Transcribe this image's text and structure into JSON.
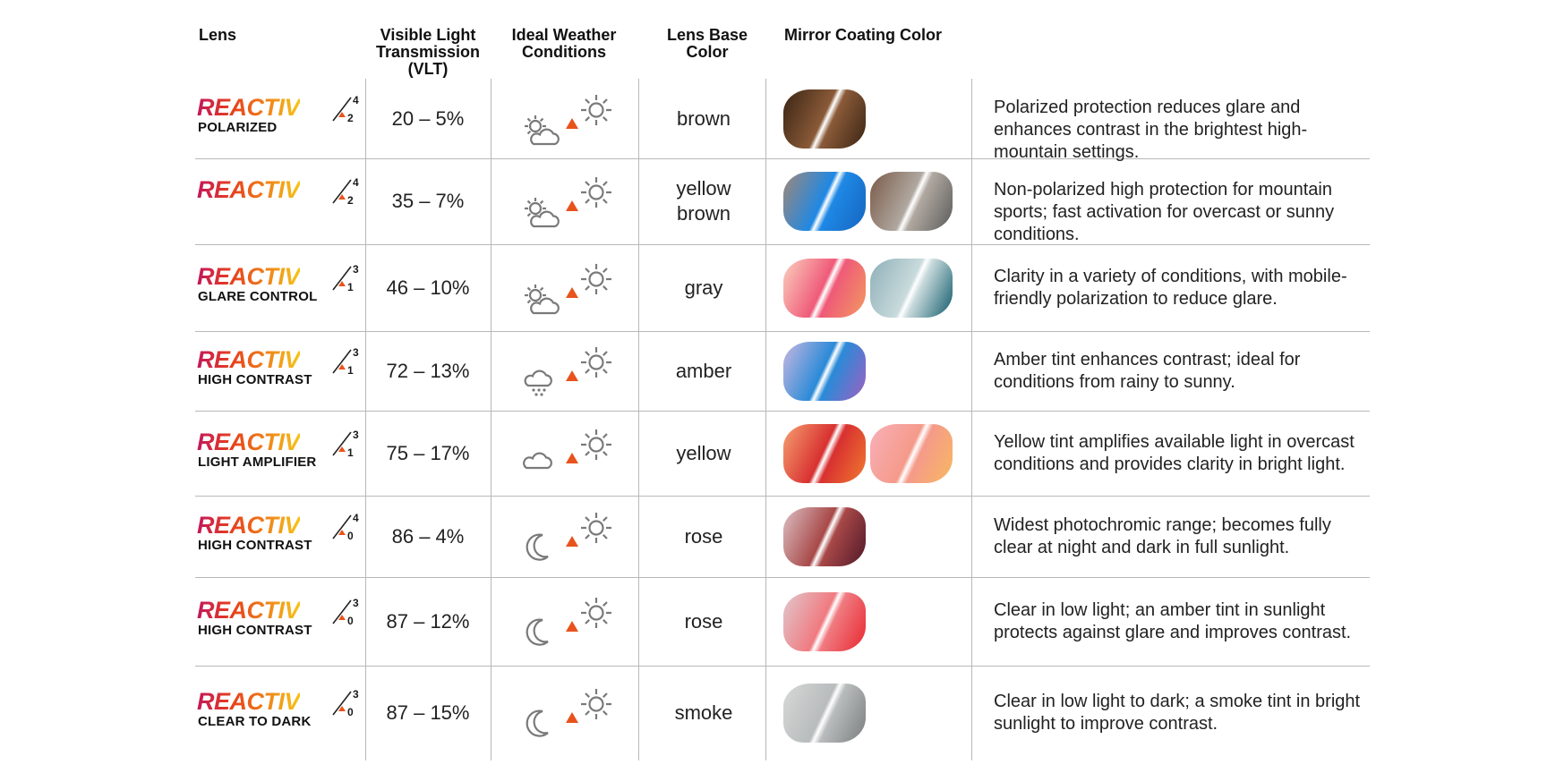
{
  "headers": {
    "lens": "Lens",
    "vlt": "Visible Light\nTransmission\n(VLT)",
    "weather": "Ideal Weather\nConditions",
    "base": "Lens Base\nColor",
    "mirror": "Mirror Coating Color"
  },
  "brand_word": "REACTIV",
  "colors": {
    "brand_gradient_start": "#c2185b",
    "brand_gradient_end": "#f5c518",
    "triangle": "#e8531c",
    "icon_gray": "#7a7a7a",
    "rule": "#b8b8b8"
  },
  "rows": [
    {
      "sub": "POLARIZED",
      "num": "2",
      "den": "4",
      "vlt": "20 – 5%",
      "weather_from": "sun-cloud-icon",
      "base": "brown",
      "desc": "Polarized protection reduces glare and enhances contrast in the brightest high-mountain settings.",
      "swatches": [
        [
          "#3a2414",
          "#8a5a38",
          "#3a2414"
        ]
      ]
    },
    {
      "sub": "",
      "num": "2",
      "den": "4",
      "vlt": "35 – 7%",
      "weather_from": "sun-cloud-icon",
      "base": "yellow\nbrown",
      "desc": "Non-polarized high protection for mountain sports; fast activation for overcast or sunny conditions.",
      "swatches": [
        [
          "#a08878",
          "#1e88e5",
          "#1565c0"
        ],
        [
          "#7a5a48",
          "#b0a8a0",
          "#5a5a5a"
        ]
      ]
    },
    {
      "sub": "GLARE CONTROL",
      "num": "1",
      "den": "3",
      "vlt": "46 – 10%",
      "weather_from": "sun-cloud-icon",
      "base": "gray",
      "desc": "Clarity in a variety of conditions, with mobile-friendly polarization to reduce glare.",
      "swatches": [
        [
          "#fbd0c0",
          "#ef5a78",
          "#f29a60"
        ],
        [
          "#8fb0b8",
          "#c8dadc",
          "#0f5a6a"
        ]
      ]
    },
    {
      "sub": "HIGH CONTRAST",
      "num": "1",
      "den": "3",
      "vlt": "72 – 13%",
      "weather_from": "rain-cloud-icon",
      "base": "amber",
      "desc": "Amber tint enhances contrast; ideal for conditions from rainy to sunny.",
      "swatches": [
        [
          "#c8b8e0",
          "#2a8ad8",
          "#a060c0"
        ]
      ]
    },
    {
      "sub": "LIGHT AMPLIFIER",
      "num": "1",
      "den": "3",
      "vlt": "75 – 17%",
      "weather_from": "cloud-icon",
      "base": "yellow",
      "desc": "Yellow tint amplifies available light in overcast conditions and provides clarity in bright light.",
      "swatches": [
        [
          "#f5a070",
          "#d83030",
          "#f07a30"
        ],
        [
          "#f8b0b8",
          "#f59a8a",
          "#f8b860"
        ]
      ]
    },
    {
      "sub": "HIGH CONTRAST",
      "num": "0",
      "den": "4",
      "vlt": "86 – 4%",
      "weather_from": "moon-icon",
      "base": "rose",
      "desc": "Widest photochromic range; becomes fully clear at night and dark in full sunlight.",
      "swatches": [
        [
          "#dcc0c4",
          "#a84848",
          "#501828"
        ]
      ]
    },
    {
      "sub": "HIGH CONTRAST",
      "num": "0",
      "den": "3",
      "vlt": "87 – 12%",
      "weather_from": "moon-icon",
      "base": "rose",
      "desc": "Clear in low light; an amber tint in sunlight protects against glare and improves contrast.",
      "swatches": [
        [
          "#e0c8cc",
          "#f07a80",
          "#e82830"
        ]
      ]
    },
    {
      "sub": "CLEAR TO DARK",
      "num": "0",
      "den": "3",
      "vlt": "87 – 15%",
      "weather_from": "moon-icon",
      "base": "smoke",
      "desc": "Clear in low light to dark; a smoke tint in bright sunlight to improve contrast.",
      "swatches": [
        [
          "#d8d8d8",
          "#b8bcbc",
          "#7a7e7e"
        ]
      ]
    }
  ]
}
